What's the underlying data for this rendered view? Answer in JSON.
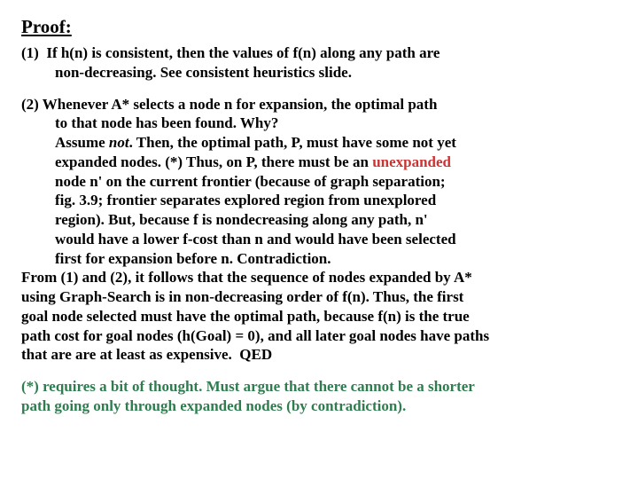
{
  "title": "Proof:",
  "p1_l1": "(1)  If h(n) is consistent, then the values of f(n) along any path are",
  "p1_l2": "non-decreasing. See consistent heuristics slide.",
  "p2_l1": "(2) Whenever A* selects a node n for expansion, the optimal path",
  "p2_l2": "to that node has been found. Why?",
  "p2_l3a": "Assume ",
  "p2_not": "not",
  "p2_l3b": ". Then, the optimal path, P, must have some not yet",
  "p2_l4a": "expanded nodes. (*) Thus, on P, there must be an ",
  "p2_unexp": "unexpanded",
  "p2_l5": "node n' on the current frontier (because of graph separation;",
  "p2_l6": "fig. 3.9; frontier separates explored region from unexplored",
  "p2_l7": "region). But, because f is nondecreasing along any path, n'",
  "p2_l8": "would have a lower f-cost than n and would have been selected",
  "p2_l9": "first for expansion before n. Contradiction.",
  "p2_l10": "From (1) and (2), it follows that the sequence of nodes expanded by A*",
  "p2_l11": "using Graph-Search is in non-decreasing order of f(n). Thus, the first",
  "p2_l12": "goal node selected must have the optimal path, because f(n) is the true",
  "p2_l13": "path cost for goal nodes (h(Goal) = 0), and all later goal nodes have paths",
  "p2_l14": "that are are at least as expensive.  QED",
  "fn_l1": "(*) requires a bit of thought. Must argue that there cannot be a shorter",
  "fn_l2": "path going only through expanded nodes (by contradiction).",
  "colors": {
    "text": "#000000",
    "highlight_red": "#cc3333",
    "footnote_green": "#2e7d4f",
    "background": "#ffffff"
  },
  "font": {
    "family": "Times New Roman",
    "body_size_pt": 13,
    "title_size_pt": 16,
    "weight": "bold"
  }
}
